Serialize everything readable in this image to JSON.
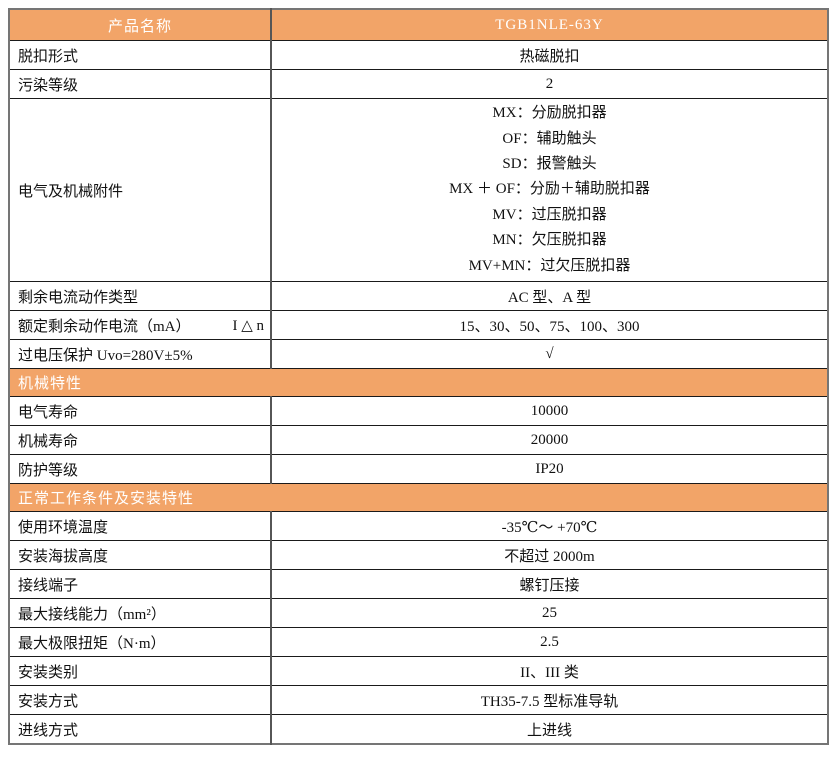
{
  "colors": {
    "header_orange": "#F2A468",
    "header_text": "#FFFFFF",
    "body_text": "#111111",
    "inner_border": "#1A1A1A",
    "outer_border": "#757575"
  },
  "product": {
    "name_label": "产品名称",
    "model": "TGB1NLE-63Y"
  },
  "rows": {
    "trip_type": {
      "label": "脱扣形式",
      "value": "热磁脱扣"
    },
    "pollution": {
      "label": "污染等级",
      "value": "2"
    },
    "accessories": {
      "label": "电气及机械附件",
      "lines": [
        "MX：分励脱扣器",
        "OF：辅助触头",
        "SD：报警触头",
        "MX ＋ OF：分励＋辅助脱扣器",
        "MV：过压脱扣器",
        "MN：欠压脱扣器",
        "MV+MN：过欠压脱扣器"
      ]
    },
    "residual_type": {
      "label": "剩余电流动作类型",
      "value": "AC 型、A 型"
    },
    "residual_current": {
      "label": "额定剩余动作电流（mA）",
      "symbol": "I △ n",
      "value": "15、30、50、75、100、300"
    },
    "overvoltage": {
      "label": "过电压保护 Uvo=280V±5%",
      "value": "√"
    },
    "electrical_life": {
      "label": "电气寿命",
      "value": "10000"
    },
    "mechanical_life": {
      "label": "机械寿命",
      "value": "20000"
    },
    "protection_grade": {
      "label": "防护等级",
      "value": "IP20"
    },
    "ambient_temp": {
      "label": "使用环境温度",
      "value": "-35℃～ +70℃"
    },
    "altitude": {
      "label": "安装海拔高度",
      "value": "不超过 2000m"
    },
    "terminal": {
      "label": "接线端子",
      "value": "螺钉压接"
    },
    "max_wiring": {
      "label": "最大接线能力（mm²）",
      "value": "25"
    },
    "max_torque": {
      "label": "最大极限扭矩（N·m）",
      "value": "2.5"
    },
    "install_category": {
      "label": "安装类别",
      "value": "II、III 类"
    },
    "install_method": {
      "label": "安装方式",
      "value": "TH35-7.5 型标准导轨"
    },
    "incoming_line": {
      "label": "进线方式",
      "value": "上进线"
    }
  },
  "sections": {
    "mechanical": "机械特性",
    "working_conditions": "正常工作条件及安装特性"
  }
}
